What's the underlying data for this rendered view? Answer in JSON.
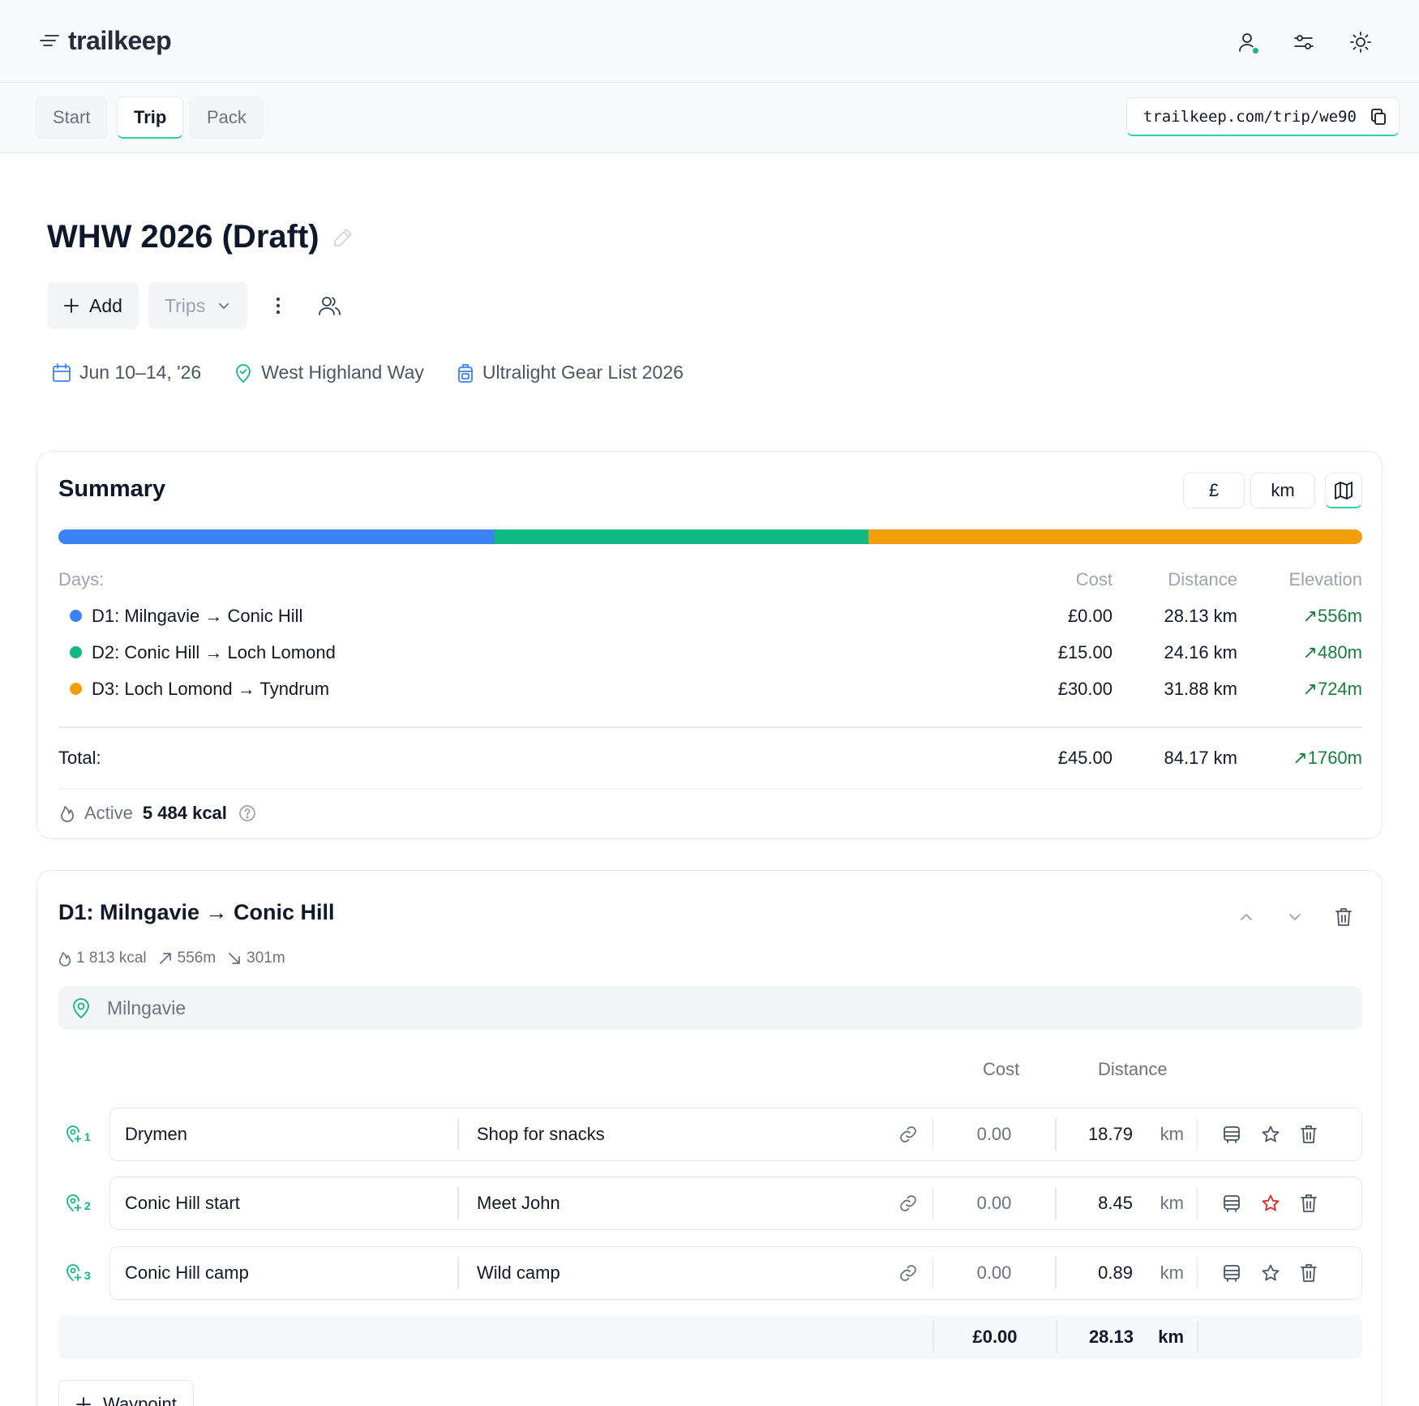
{
  "app": {
    "logo_text": "trailkeep"
  },
  "header": {
    "icons": [
      "user-icon",
      "sliders-icon",
      "sun-icon"
    ],
    "colors": {
      "status_dot": "#10b981",
      "accent": "#34d399"
    }
  },
  "tabs": [
    {
      "label": "Start",
      "active": false
    },
    {
      "label": "Trip",
      "active": true
    },
    {
      "label": "Pack",
      "active": false
    }
  ],
  "share_url": "trailkeep.com/trip/we90",
  "trip": {
    "title": "WHW 2026 (Draft)",
    "add_label": "Add",
    "trips_label": "Trips",
    "date": "Jun 10–14, '26",
    "route": "West Highland Way",
    "gear_list": "Ultralight Gear List 2026"
  },
  "summary": {
    "title": "Summary",
    "currency_toggle": "£",
    "unit_toggle": "km",
    "days_label": "Days:",
    "col_cost": "Cost",
    "col_distance": "Distance",
    "col_elevation": "Elevation",
    "progress": [
      {
        "color": "#3b82f6",
        "value_km": 28.13
      },
      {
        "color": "#10b981",
        "value_km": 24.16
      },
      {
        "color": "#f59e0b",
        "value_km": 31.88
      }
    ],
    "days": [
      {
        "name": "D1: Milngavie → Conic Hill",
        "cost": "£0.00",
        "distance": "28.13 km",
        "elevation": "↗556m",
        "color": "#3b82f6"
      },
      {
        "name": "D2: Conic Hill → Loch Lomond",
        "cost": "£15.00",
        "distance": "24.16 km",
        "elevation": "↗480m",
        "color": "#10b981"
      },
      {
        "name": "D3: Loch Lomond → Tyndrum",
        "cost": "£30.00",
        "distance": "31.88 km",
        "elevation": "↗724m",
        "color": "#f59e0b"
      }
    ],
    "total_label": "Total:",
    "total_cost": "£45.00",
    "total_distance": "84.17 km",
    "total_elevation": "↗1760m",
    "active_label": "Active",
    "active_value": "5 484 kcal"
  },
  "day1": {
    "title": "D1: Milngavie → Conic Hill",
    "kcal": "1 813 kcal",
    "ascent": "556m",
    "descent": "301m",
    "start": "Milngavie",
    "col_cost": "Cost",
    "col_distance": "Distance",
    "waypoints": [
      {
        "num": "1",
        "name": "Drymen",
        "note": "Shop for snacks",
        "cost": "0.00",
        "distance": "18.79",
        "unit": "km",
        "starred": false
      },
      {
        "num": "2",
        "name": "Conic Hill start",
        "note": "Meet John",
        "cost": "0.00",
        "distance": "8.45",
        "unit": "km",
        "starred": true
      },
      {
        "num": "3",
        "name": "Conic Hill camp",
        "note": "Wild camp",
        "cost": "0.00",
        "distance": "0.89",
        "unit": "km",
        "starred": false
      }
    ],
    "total_cost": "£0.00",
    "total_distance": "28.13",
    "total_unit": "km",
    "add_waypoint_label": "Waypoint"
  }
}
